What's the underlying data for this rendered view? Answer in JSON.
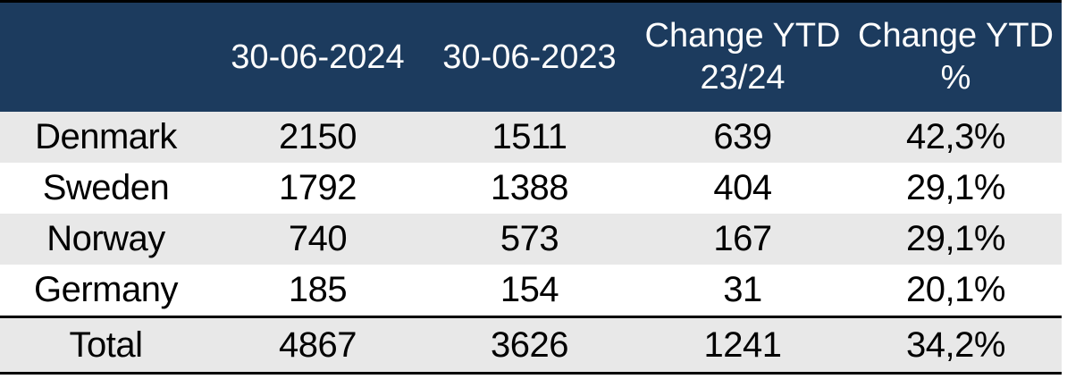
{
  "colors": {
    "header_bg": "#1c3b5e",
    "header_text": "#ffffff",
    "row_alt_bg": "#e8e8e8",
    "row_bg": "#ffffff",
    "rule": "#000000",
    "body_text": "#000000"
  },
  "table": {
    "columns": {
      "c0": "",
      "c1": "30-06-2024",
      "c2": "30-06-2023",
      "c3": "Change YTD 23/24",
      "c4": "Change YTD %"
    },
    "rows": [
      {
        "label": "Denmark",
        "values": [
          "2150",
          "1511",
          "639",
          "42,3%"
        ]
      },
      {
        "label": "Sweden",
        "values": [
          "1792",
          "1388",
          "404",
          "29,1%"
        ]
      },
      {
        "label": "Norway",
        "values": [
          "740",
          "573",
          "167",
          "29,1%"
        ]
      },
      {
        "label": "Germany",
        "values": [
          "185",
          "154",
          "31",
          "20,1%"
        ]
      }
    ],
    "total": {
      "label": "Total",
      "values": [
        "4867",
        "3626",
        "1241",
        "34,2%"
      ]
    }
  },
  "chart_data": {
    "type": "table",
    "columns": [
      "",
      "30-06-2024",
      "30-06-2023",
      "Change YTD 23/24",
      "Change YTD %"
    ],
    "rows": [
      [
        "Denmark",
        2150,
        1511,
        639,
        "42,3%"
      ],
      [
        "Sweden",
        1792,
        1388,
        404,
        "29,1%"
      ],
      [
        "Norway",
        740,
        573,
        167,
        "29,1%"
      ],
      [
        "Germany",
        185,
        154,
        31,
        "20,1%"
      ],
      [
        "Total",
        4867,
        3626,
        1241,
        "34,2%"
      ]
    ],
    "notes": "Comparison table of values at 30-06-2024 vs 30-06-2023 with YTD change and YTD change percent; decimal commas; Total row summed at bottom."
  }
}
